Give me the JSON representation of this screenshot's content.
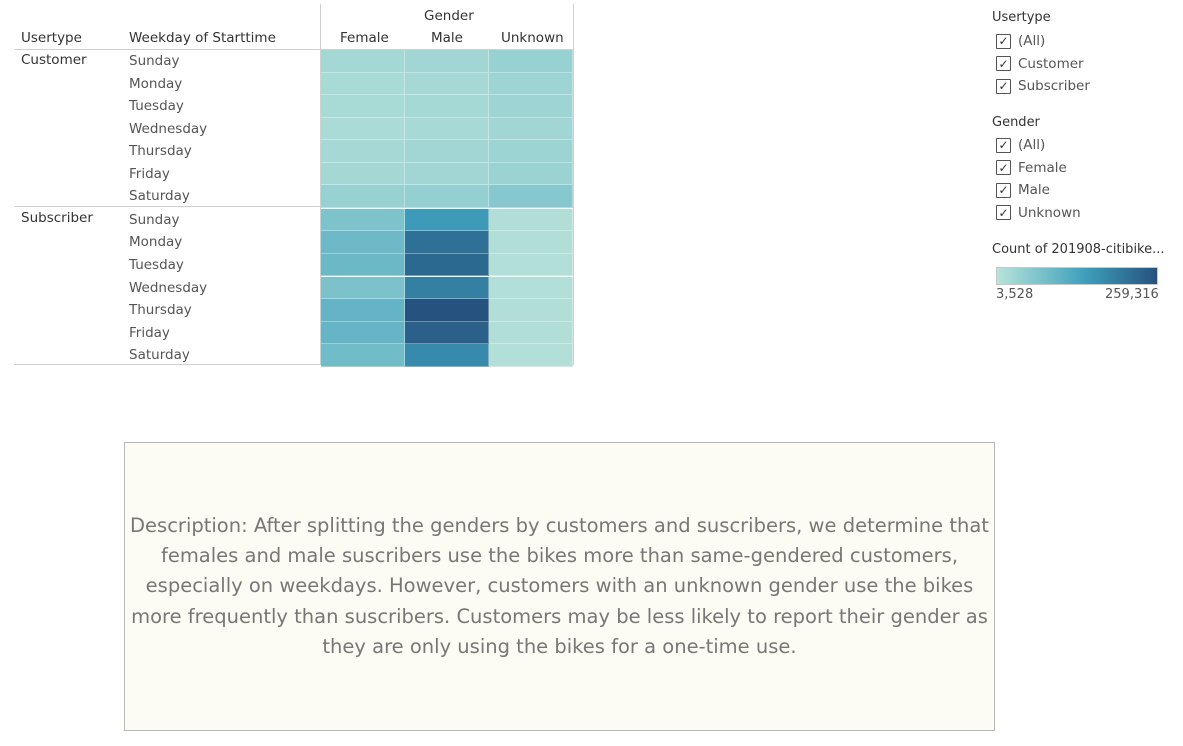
{
  "chart_data": {
    "type": "heatmap",
    "column_header_group": "Gender",
    "row_headers": [
      "Usertype",
      "Weekday of Starttime"
    ],
    "columns": [
      "Female",
      "Male",
      "Unknown"
    ],
    "row_groups": [
      {
        "name": "Customer",
        "rows": [
          {
            "day": "Sunday",
            "values": [
              27000,
              30000,
              40000
            ]
          },
          {
            "day": "Monday",
            "values": [
              22000,
              24000,
              34000
            ]
          },
          {
            "day": "Tuesday",
            "values": [
              22000,
              25000,
              33000
            ]
          },
          {
            "day": "Wednesday",
            "values": [
              20000,
              23000,
              30000
            ]
          },
          {
            "day": "Thursday",
            "values": [
              24000,
              30000,
              36000
            ]
          },
          {
            "day": "Friday",
            "values": [
              26000,
              30000,
              37000
            ]
          },
          {
            "day": "Saturday",
            "values": [
              40000,
              45000,
              60000
            ]
          }
        ]
      },
      {
        "name": "Subscriber",
        "rows": [
          {
            "day": "Sunday",
            "values": [
              70000,
              150000,
              12000
            ]
          },
          {
            "day": "Monday",
            "values": [
              90000,
              215000,
              12000
            ]
          },
          {
            "day": "Tuesday",
            "values": [
              92000,
              225000,
              11000
            ]
          },
          {
            "day": "Wednesday",
            "values": [
              72000,
              190000,
              11000
            ]
          },
          {
            "day": "Thursday",
            "values": [
              100000,
              259316,
              12000
            ]
          },
          {
            "day": "Friday",
            "values": [
              98000,
              238000,
              12000
            ]
          },
          {
            "day": "Saturday",
            "values": [
              85000,
              175000,
              11000
            ]
          }
        ]
      }
    ],
    "color_scale": {
      "title": "Count of 201908-citibike...",
      "min": 3528,
      "max": 259316,
      "min_label": "3,528",
      "max_label": "259,316",
      "low_color": "#b8e3da",
      "mid_color": "#3e9fbc",
      "high_color": "#25527e"
    }
  },
  "filters": [
    {
      "title": "Usertype",
      "items": [
        "(All)",
        "Customer",
        "Subscriber"
      ]
    },
    {
      "title": "Gender",
      "items": [
        "(All)",
        "Female",
        "Male",
        "Unknown"
      ]
    }
  ],
  "checkbox_glyph": "✓",
  "description": "Description: After splitting the genders by customers and suscribers, we determine that females and male suscribers use the bikes more than same-gendered customers, especially on weekdays. However, customers with an unknown gender use the bikes more frequently than suscribers. Customers may be less likely to report their gender as they are only using the bikes for a one-time use."
}
